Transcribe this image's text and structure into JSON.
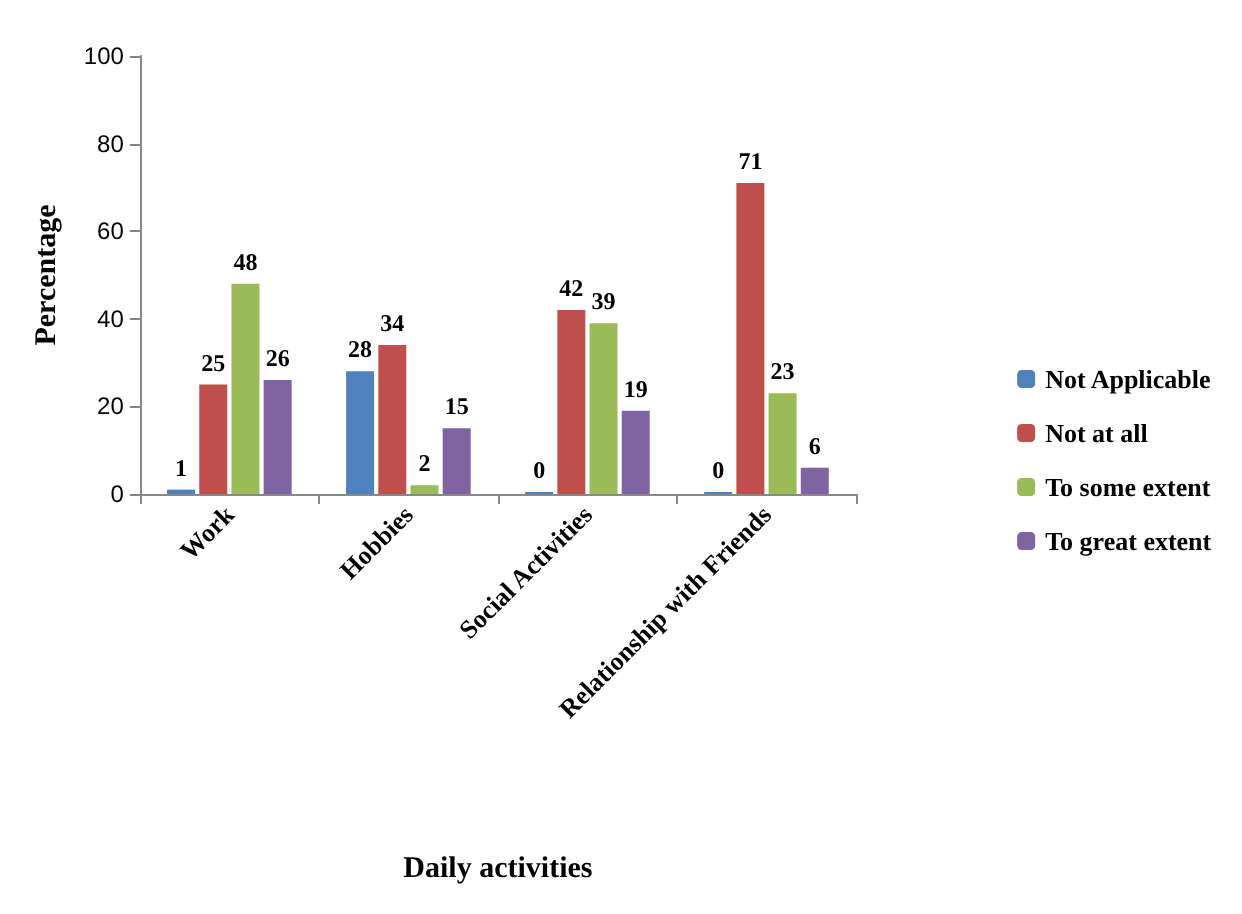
{
  "chart_data": {
    "type": "bar",
    "xlabel": "Daily activities",
    "ylabel": "Percentage",
    "categories": [
      "Work",
      "Hobbies",
      "Social Activities",
      "Relationship with Friends"
    ],
    "series": [
      {
        "name": "Not Applicable",
        "color": "#4f81bd",
        "values": [
          1,
          28,
          0,
          0
        ]
      },
      {
        "name": "Not at all",
        "color": "#c0504d",
        "values": [
          25,
          34,
          42,
          71
        ]
      },
      {
        "name": "To some extent",
        "color": "#9bbb59",
        "values": [
          48,
          2,
          39,
          23
        ]
      },
      {
        "name": "To great extent",
        "color": "#8064a2",
        "values": [
          26,
          15,
          19,
          6
        ]
      }
    ],
    "ylim": [
      0,
      100
    ],
    "yticks": [
      0,
      20,
      40,
      60,
      80,
      100
    ],
    "grid": false,
    "legend": "right",
    "data_labels": true
  }
}
